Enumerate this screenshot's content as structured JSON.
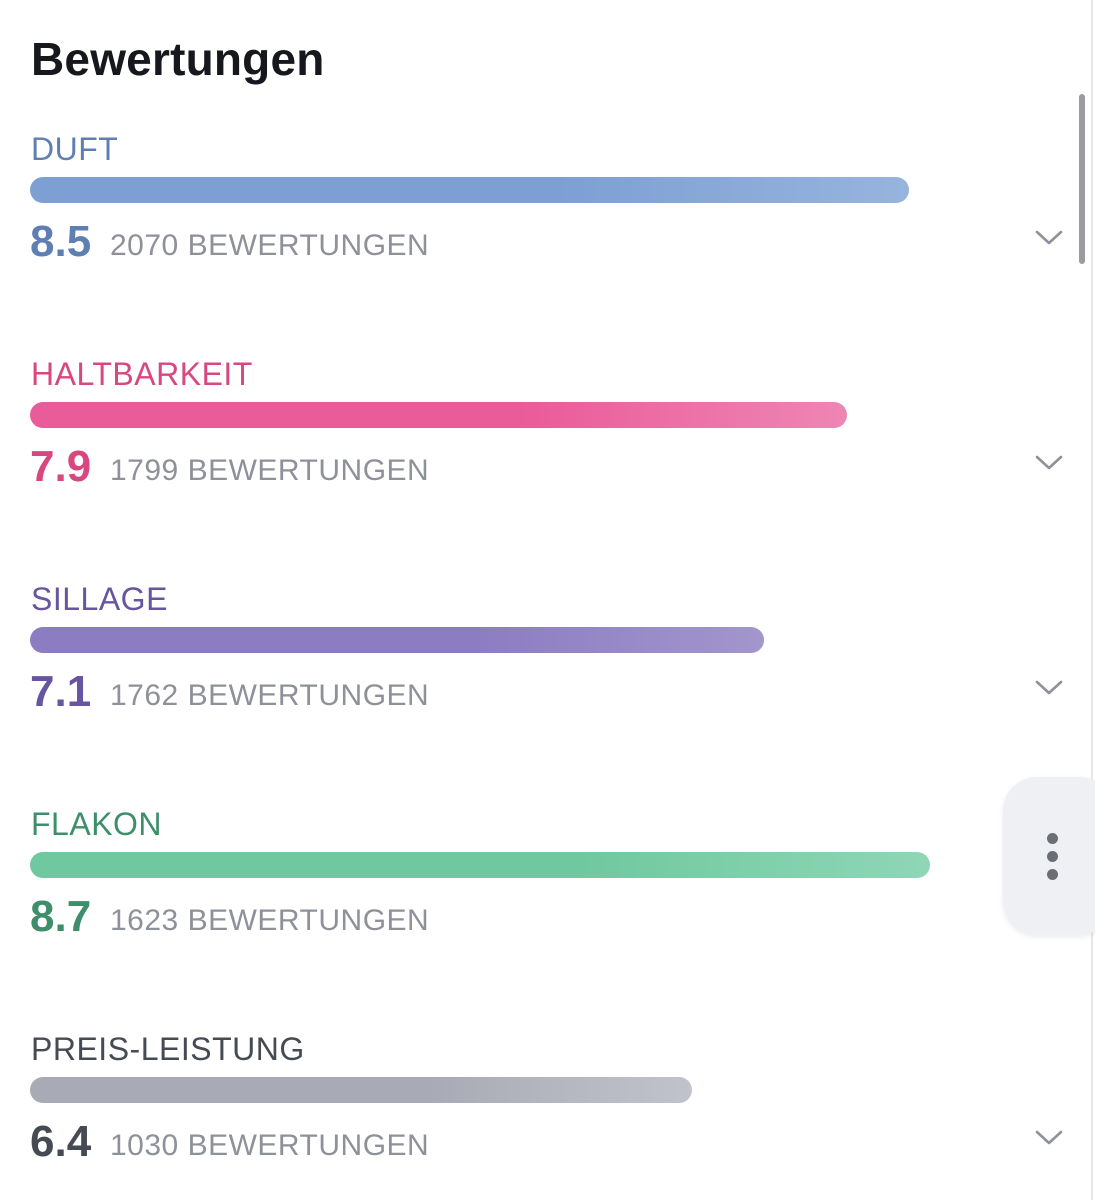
{
  "header": {
    "title": "Bewertungen"
  },
  "ratings": [
    {
      "label": "DUFT",
      "score": "8.5",
      "count": "2070 BEWERTUNGEN",
      "fill": 0.85,
      "color": "#5f7fb3",
      "bar_from": "#7d9fd3",
      "bar_to": "#97b4de"
    },
    {
      "label": "HALTBARKEIT",
      "score": "7.9",
      "count": "1799 BEWERTUNGEN",
      "fill": 0.79,
      "color": "#d8477f",
      "bar_from": "#ea5b99",
      "bar_to": "#ee86b4"
    },
    {
      "label": "SILLAGE",
      "score": "7.1",
      "count": "1762 BEWERTUNGEN",
      "fill": 0.71,
      "color": "#67559f",
      "bar_from": "#8c7cc1",
      "bar_to": "#a296cd"
    },
    {
      "label": "FLAKON",
      "score": "8.7",
      "count": "1623 BEWERTUNGEN",
      "fill": 0.87,
      "color": "#3f8e6b",
      "bar_from": "#6fc89f",
      "bar_to": "#8fd6b6"
    },
    {
      "label": "PREIS-LEISTUNG",
      "score": "6.4",
      "count": "1030 BEWERTUNGEN",
      "fill": 0.64,
      "color": "#464a53",
      "bar_from": "#a8abb5",
      "bar_to": "#c0c3cb"
    }
  ],
  "icons": {
    "expand": "chevron-down-icon",
    "more": "more-vertical-icon"
  }
}
